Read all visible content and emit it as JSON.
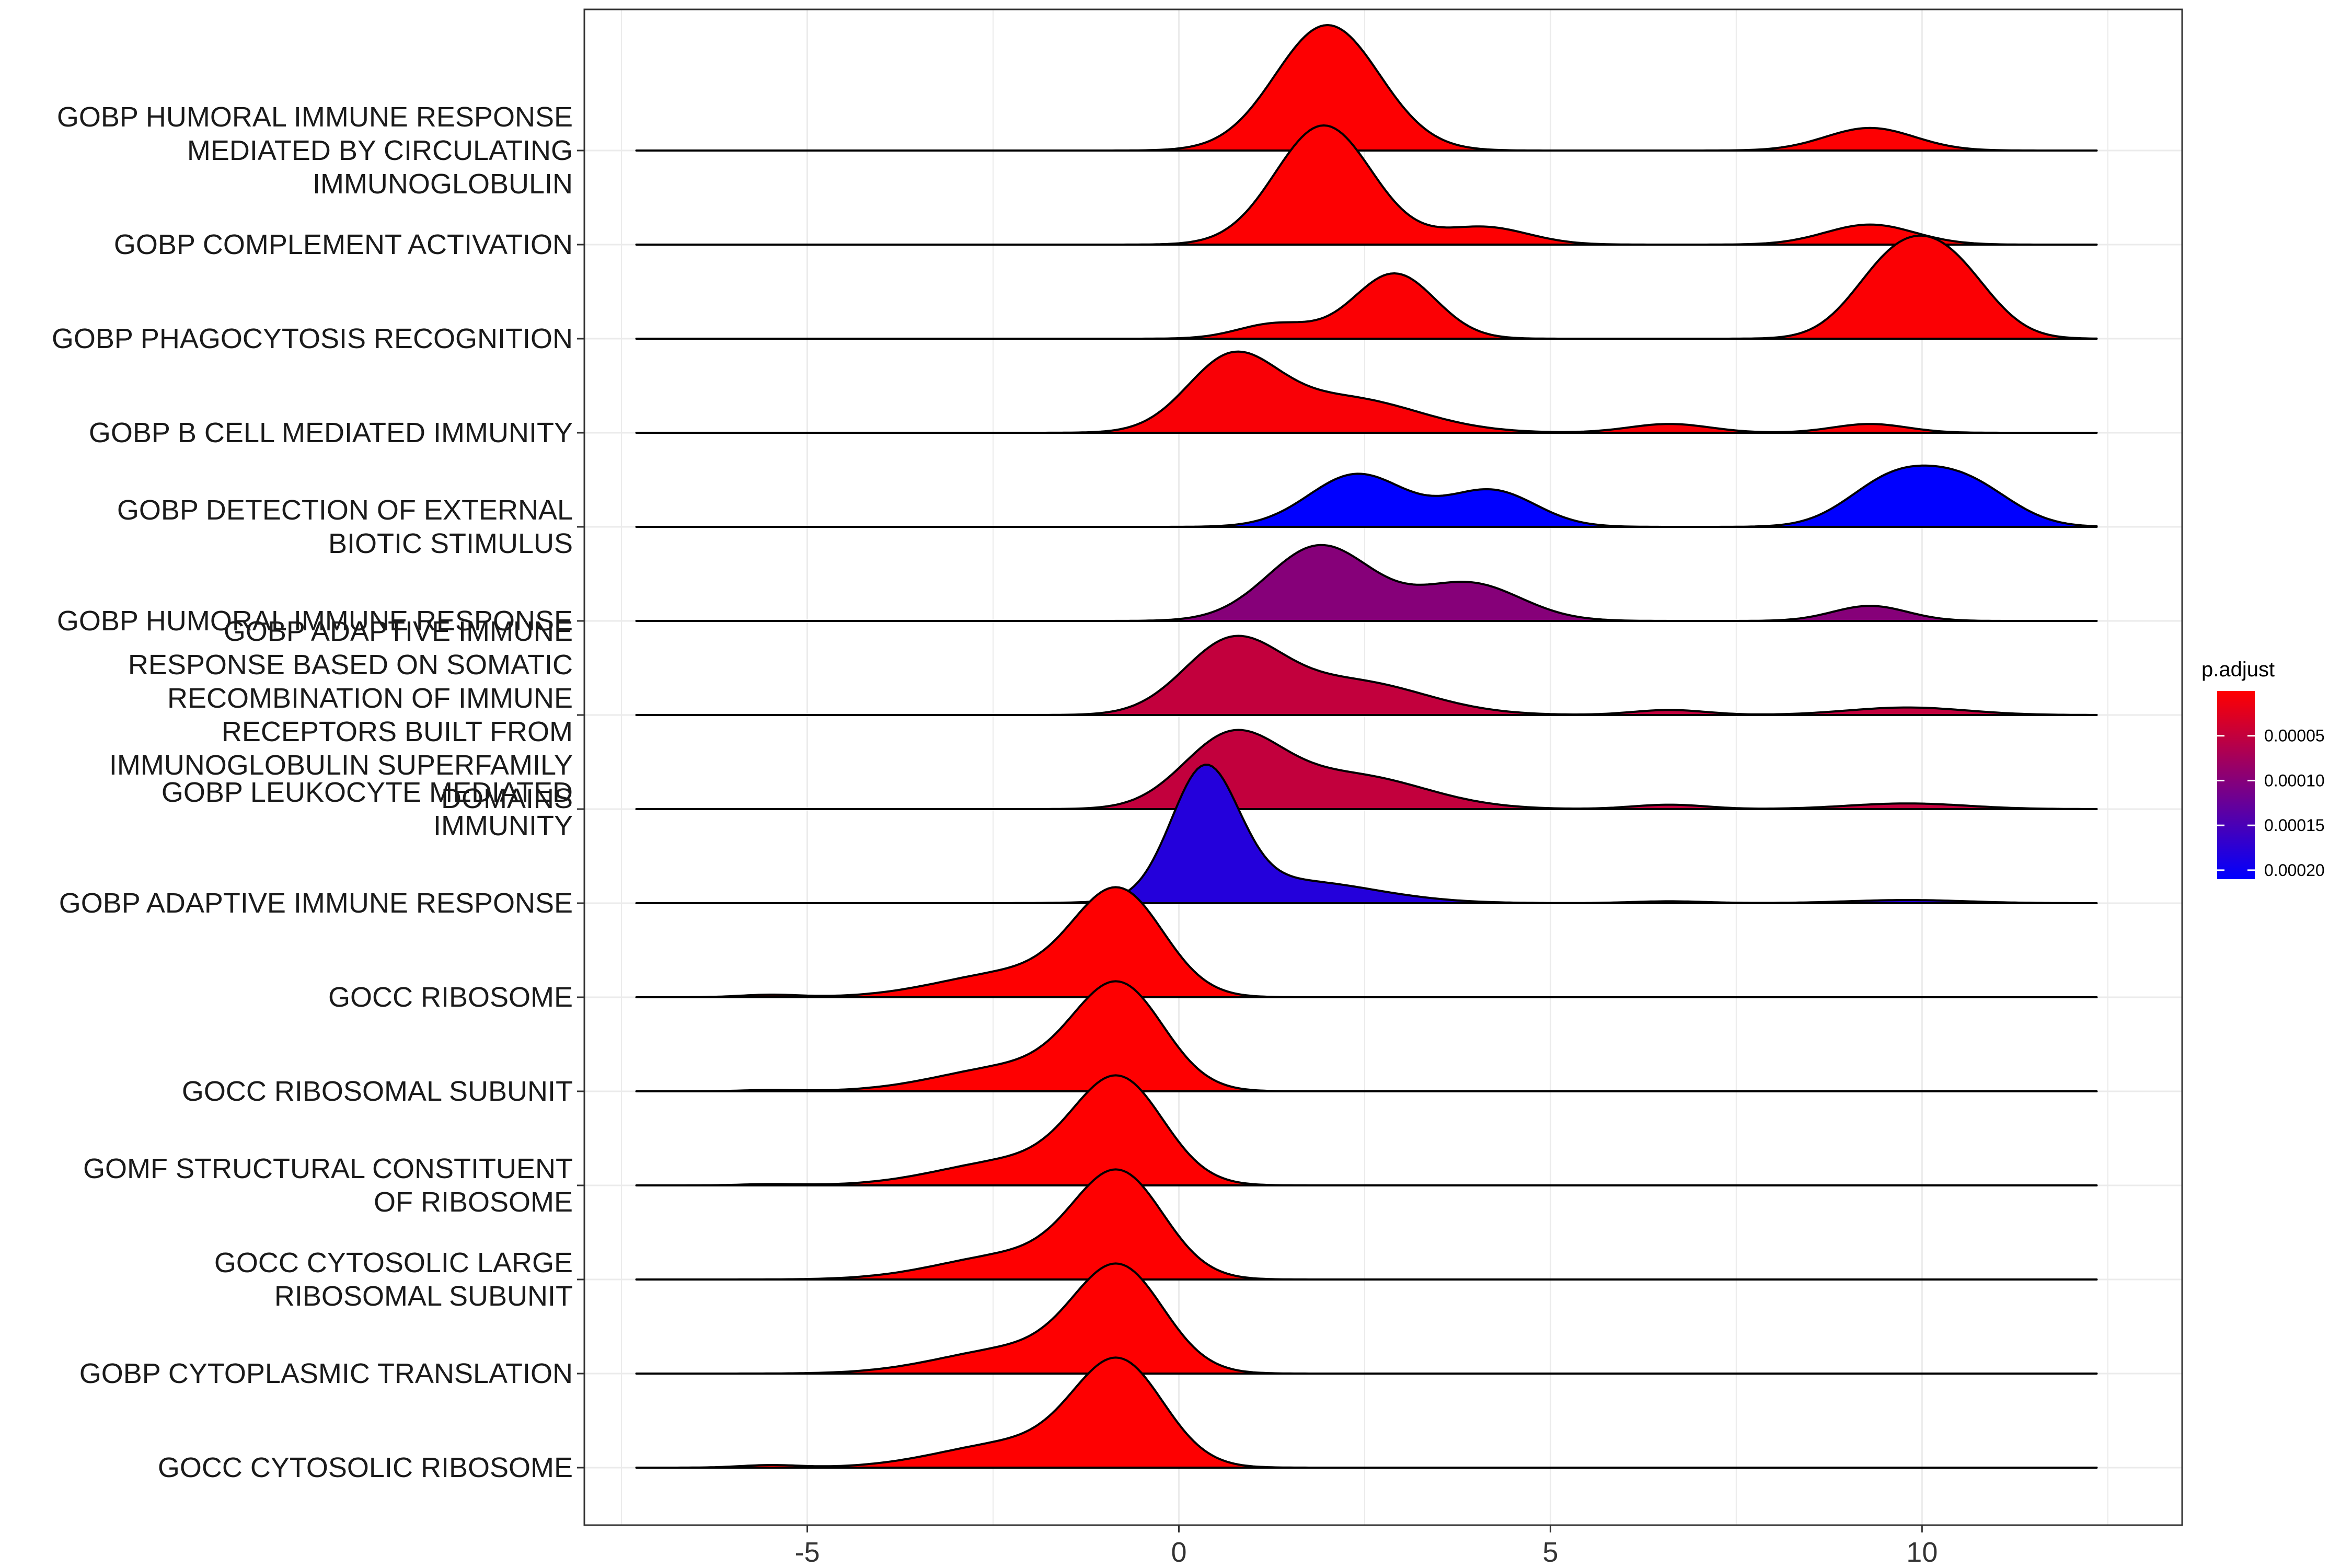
{
  "chart_data": {
    "type": "ridgeline",
    "x_ticks": [
      "-5",
      "0",
      "5",
      "10"
    ],
    "xlim": [
      -8.0,
      13.5
    ],
    "legend": {
      "title": "p.adjust",
      "ticks": [
        "0.00005",
        "0.00010",
        "0.00015",
        "0.00020"
      ],
      "low_color": "#FF0000",
      "high_color": "#0000FF",
      "placement": "right"
    },
    "series": [
      {
        "label_lines": [
          "GOBP HUMORAL IMMUNE RESPONSE",
          "MEDIATED BY CIRCULATING",
          "IMMUNOGLOBULIN"
        ],
        "p_adjust": 2e-06,
        "components": [
          [
            2.0,
            0.7,
            1.0
          ],
          [
            9.3,
            0.6,
            0.18
          ]
        ]
      },
      {
        "label_lines": [
          "GOBP COMPLEMENT ACTIVATION"
        ],
        "p_adjust": 2e-06,
        "components": [
          [
            1.95,
            0.65,
            0.95
          ],
          [
            4.1,
            0.6,
            0.14
          ],
          [
            9.3,
            0.6,
            0.16
          ]
        ]
      },
      {
        "label_lines": [
          "GOBP PHAGOCYTOSIS RECOGNITION"
        ],
        "p_adjust": 3e-06,
        "components": [
          [
            2.9,
            0.55,
            0.52
          ],
          [
            1.3,
            0.5,
            0.12
          ],
          [
            9.6,
            0.55,
            0.55
          ],
          [
            10.4,
            0.55,
            0.52
          ]
        ]
      },
      {
        "label_lines": [
          "GOBP B CELL MEDIATED IMMUNITY"
        ],
        "p_adjust": 5e-06,
        "components": [
          [
            0.7,
            0.6,
            0.55
          ],
          [
            2.2,
            1.0,
            0.28
          ],
          [
            6.6,
            0.55,
            0.07
          ],
          [
            9.3,
            0.5,
            0.07
          ]
        ]
      },
      {
        "label_lines": [
          "GOBP DETECTION OF EXTERNAL",
          "BIOTIC STIMULUS"
        ],
        "p_adjust": 0.00021,
        "components": [
          [
            2.4,
            0.65,
            0.42
          ],
          [
            4.2,
            0.6,
            0.29
          ],
          [
            9.6,
            0.6,
            0.36
          ],
          [
            10.6,
            0.6,
            0.33
          ]
        ]
      },
      {
        "label_lines": [
          "GOBP HUMORAL IMMUNE RESPONSE"
        ],
        "p_adjust": 0.0001,
        "components": [
          [
            1.9,
            0.7,
            0.6
          ],
          [
            3.9,
            0.7,
            0.3
          ],
          [
            9.3,
            0.5,
            0.12
          ]
        ]
      },
      {
        "label_lines": [
          "GOBP ADAPTIVE IMMUNE",
          "RESPONSE BASED ON SOMATIC",
          "RECOMBINATION OF IMMUNE",
          "RECEPTORS BUILT FROM",
          "IMMUNOGLOBULIN SUPERFAMILY",
          "DOMAINS"
        ],
        "p_adjust": 5e-05,
        "components": [
          [
            0.7,
            0.65,
            0.55
          ],
          [
            2.3,
            1.0,
            0.27
          ],
          [
            6.6,
            0.5,
            0.04
          ],
          [
            9.8,
            0.8,
            0.06
          ]
        ]
      },
      {
        "label_lines": [
          "GOBP LEUKOCYTE MEDIATED",
          "IMMUNITY"
        ],
        "p_adjust": 5e-05,
        "components": [
          [
            0.7,
            0.65,
            0.55
          ],
          [
            2.3,
            1.0,
            0.27
          ],
          [
            6.6,
            0.5,
            0.035
          ],
          [
            9.8,
            0.8,
            0.045
          ]
        ]
      },
      {
        "label_lines": [
          "GOBP ADAPTIVE IMMUNE RESPONSE"
        ],
        "p_adjust": 0.00018,
        "components": [
          [
            0.35,
            0.45,
            1.0
          ],
          [
            1.5,
            1.1,
            0.18
          ],
          [
            6.6,
            0.5,
            0.015
          ],
          [
            9.8,
            0.8,
            0.025
          ]
        ]
      },
      {
        "label_lines": [
          "GOCC RIBOSOME"
        ],
        "p_adjust": 1e-06,
        "components": [
          [
            -0.8,
            0.6,
            0.8
          ],
          [
            -2.2,
            1.0,
            0.2
          ],
          [
            -5.5,
            0.4,
            0.02
          ]
        ]
      },
      {
        "label_lines": [
          "GOCC RIBOSOMAL SUBUNIT"
        ],
        "p_adjust": 1e-06,
        "components": [
          [
            -0.8,
            0.6,
            0.8
          ],
          [
            -2.2,
            1.0,
            0.2
          ],
          [
            -5.5,
            0.4,
            0.01
          ]
        ]
      },
      {
        "label_lines": [
          "GOMF STRUCTURAL CONSTITUENT",
          "OF RIBOSOME"
        ],
        "p_adjust": 1e-06,
        "components": [
          [
            -0.8,
            0.6,
            0.8
          ],
          [
            -2.2,
            1.0,
            0.2
          ],
          [
            -5.5,
            0.4,
            0.01
          ]
        ]
      },
      {
        "label_lines": [
          "GOCC CYTOSOLIC LARGE",
          "RIBOSOMAL SUBUNIT"
        ],
        "p_adjust": 1e-06,
        "components": [
          [
            -0.8,
            0.6,
            0.8
          ],
          [
            -2.2,
            1.0,
            0.2
          ]
        ]
      },
      {
        "label_lines": [
          "GOBP CYTOPLASMIC TRANSLATION"
        ],
        "p_adjust": 1e-06,
        "components": [
          [
            -0.8,
            0.6,
            0.8
          ],
          [
            -2.2,
            1.0,
            0.2
          ]
        ]
      },
      {
        "label_lines": [
          "GOCC CYTOSOLIC RIBOSOME"
        ],
        "p_adjust": 1e-06,
        "components": [
          [
            -0.8,
            0.6,
            0.8
          ],
          [
            -2.2,
            1.0,
            0.2
          ],
          [
            -5.5,
            0.4,
            0.02
          ]
        ]
      }
    ],
    "colors": {
      "grid": "#EBEBEB",
      "panel_border": "#333333",
      "ridge_outline": "#000000"
    },
    "grid": true
  }
}
